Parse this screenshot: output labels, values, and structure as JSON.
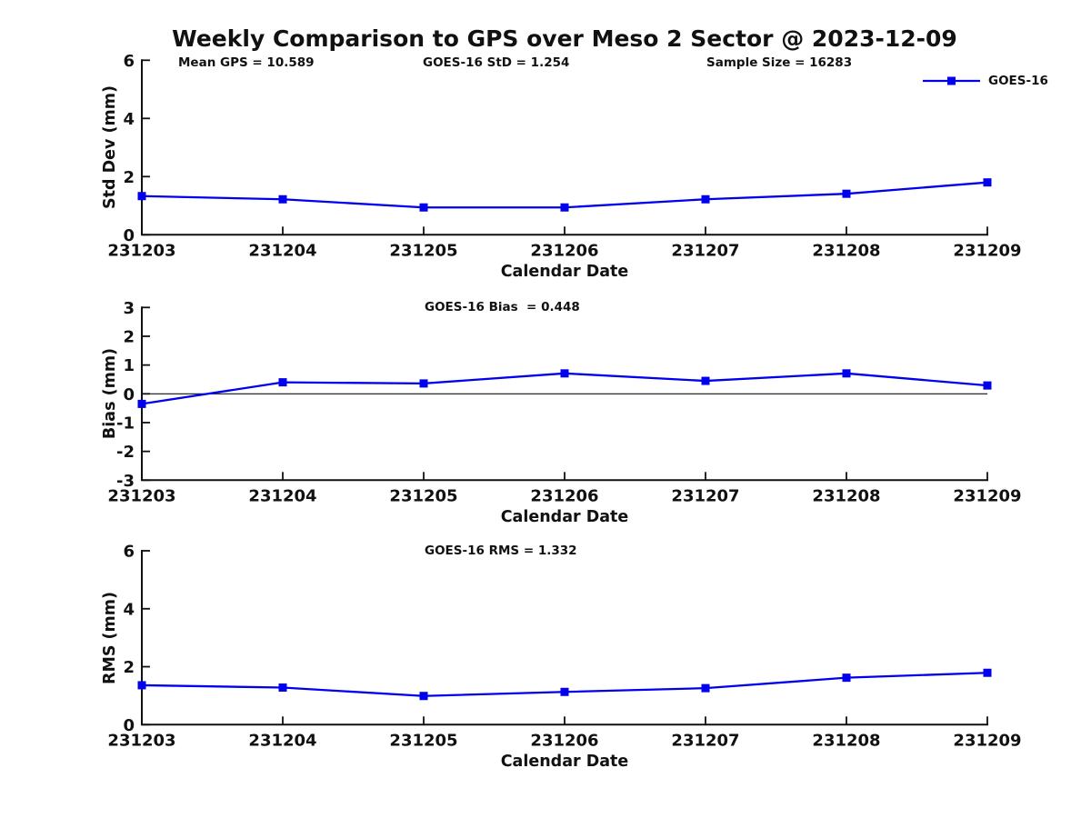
{
  "figure": {
    "title": "Weekly Comparison to GPS over Meso 2 Sector @ 2023-12-09"
  },
  "colors": {
    "series": "#0000EE",
    "axis": "#111111"
  },
  "chart_data": [
    {
      "type": "line",
      "title": "",
      "annotations": [
        "Mean GPS = 10.589",
        "GOES-16 StD = 1.254",
        "Sample Size = 16283"
      ],
      "xlabel": "Calendar Date",
      "ylabel": "Std Dev (mm)",
      "categories": [
        "231203",
        "231204",
        "231205",
        "231206",
        "231207",
        "231208",
        "231209"
      ],
      "series": [
        {
          "name": "GOES-16",
          "color": "#0000EE",
          "marker": "square",
          "values": [
            1.33,
            1.22,
            0.94,
            0.94,
            1.22,
            1.41,
            1.8
          ]
        }
      ],
      "ylim": [
        0,
        6
      ],
      "yticks": [
        0,
        2,
        4,
        6
      ],
      "zero_line": false,
      "grid": false,
      "legend_position": "top-right"
    },
    {
      "type": "line",
      "title": "GOES-16 Bias  = 0.448",
      "xlabel": "Calendar Date",
      "ylabel": "Bias (mm)",
      "categories": [
        "231203",
        "231204",
        "231205",
        "231206",
        "231207",
        "231208",
        "231209"
      ],
      "series": [
        {
          "name": "GOES-16",
          "color": "#0000EE",
          "marker": "square",
          "values": [
            -0.35,
            0.4,
            0.36,
            0.71,
            0.45,
            0.71,
            0.29
          ]
        }
      ],
      "ylim": [
        -3,
        3
      ],
      "yticks": [
        -3,
        -2,
        -1,
        0,
        1,
        2,
        3
      ],
      "zero_line": true,
      "grid": false
    },
    {
      "type": "line",
      "title": "GOES-16 RMS = 1.332",
      "xlabel": "Calendar Date",
      "ylabel": "RMS (mm)",
      "categories": [
        "231203",
        "231204",
        "231205",
        "231206",
        "231207",
        "231208",
        "231209"
      ],
      "series": [
        {
          "name": "GOES-16",
          "color": "#0000EE",
          "marker": "square",
          "values": [
            1.36,
            1.28,
            0.99,
            1.13,
            1.26,
            1.62,
            1.79
          ]
        }
      ],
      "ylim": [
        0,
        6
      ],
      "yticks": [
        0,
        2,
        4,
        6
      ],
      "zero_line": false,
      "grid": false
    }
  ]
}
